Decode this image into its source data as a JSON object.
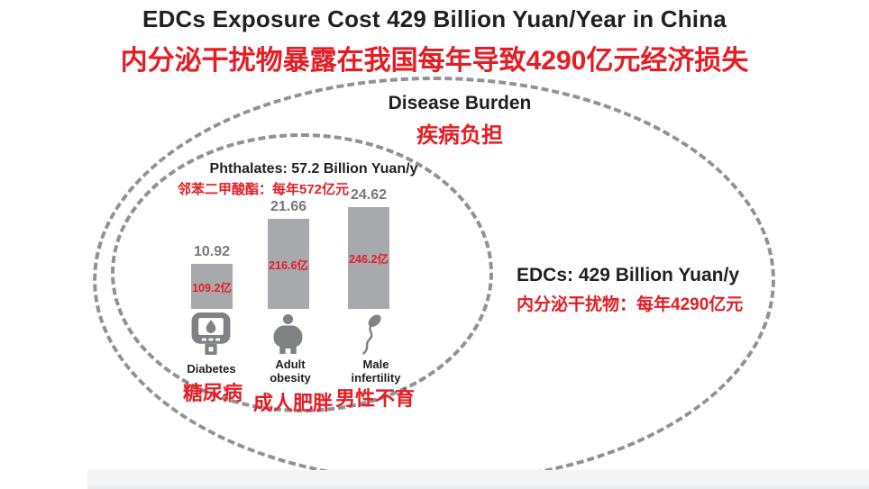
{
  "header": {
    "title_en": "EDCs Exposure Cost 429 Billion Yuan/Year in China",
    "title_zh": "内分泌干扰物暴露在我国每年导致4290亿元经济损失"
  },
  "disease_burden": {
    "label_en": "Disease Burden",
    "label_zh": "疾病负担"
  },
  "phthalates": {
    "label_en": "Phthalates: 57.2 Billion Yuan/y",
    "label_zh": "邻苯二甲酸酯：每年572亿元"
  },
  "edcs": {
    "label_en": "EDCs: 429 Billion Yuan/y",
    "label_zh": "内分泌干扰物：每年4290亿元"
  },
  "chart_data": {
    "type": "bar",
    "title": "Phthalates: 57.2 Billion Yuan/y",
    "subtitle_zh": "邻苯二甲酸酯：每年572亿元",
    "unit": "Billion Yuan per year",
    "categories": [
      "Diabetes",
      "Adult obesity",
      "Male infertility"
    ],
    "categories_zh": [
      "糖尿病",
      "成人肥胖",
      "男性不育"
    ],
    "values": [
      10.92,
      21.66,
      24.62
    ],
    "value_labels": [
      "10.92",
      "21.66",
      "24.62"
    ],
    "inner_labels_zh": [
      "109.2亿",
      "216.6亿",
      "246.2亿"
    ],
    "icons": [
      "glucose-meter-icon",
      "obese-person-icon",
      "sperm-icon"
    ],
    "bar_color": "#a7a9ac",
    "value_label_color": "#77787b",
    "legend_position": "none",
    "grid": false
  },
  "colors": {
    "accent_red": "#e31e25",
    "text_black": "#231f20",
    "dash_gray": "#909295",
    "bar_gray": "#a7a9ac"
  }
}
